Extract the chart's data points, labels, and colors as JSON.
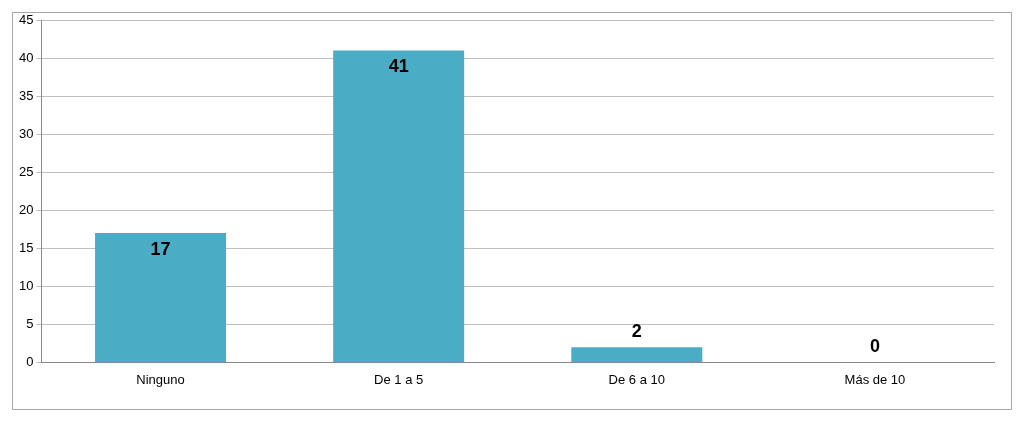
{
  "chart_data": {
    "type": "bar",
    "categories": [
      "Ninguno",
      "De 1 a 5",
      "De 6 a 10",
      "Más de 10"
    ],
    "values": [
      17,
      41,
      2,
      0
    ],
    "color": "#4bacc6",
    "ylim": [
      0,
      45
    ],
    "yticks": [
      0,
      5,
      10,
      15,
      20,
      25,
      30,
      35,
      40,
      45
    ],
    "grid": "y",
    "data_labels": true
  }
}
